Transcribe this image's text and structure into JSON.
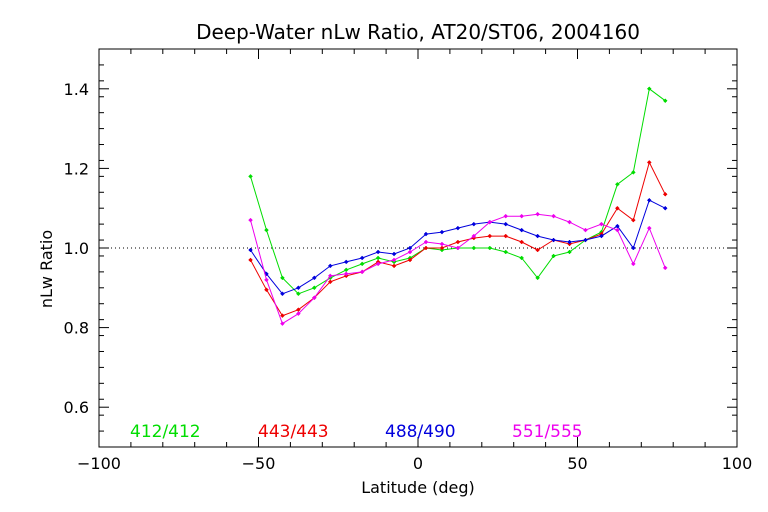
{
  "chart_data": {
    "type": "line",
    "title": "Deep-Water nLw Ratio, AT20/ST06, 2004160",
    "xlabel": "Latitude (deg)",
    "ylabel": "nLw Ratio",
    "xlim": [
      -100,
      100
    ],
    "ylim": [
      0.5,
      1.5
    ],
    "xticks": [
      -100,
      -50,
      0,
      50,
      100
    ],
    "xtick_labels": [
      "−100",
      "−50",
      "0",
      "50",
      "100"
    ],
    "yticks": [
      0.6,
      0.8,
      1.0,
      1.2,
      1.4
    ],
    "ytick_labels": [
      "0.6",
      "0.8",
      "1.0",
      "1.2",
      "1.4"
    ],
    "reference_line": {
      "y": 1.0,
      "style": "dotted"
    },
    "grid": false,
    "legend_position": "bottom, inside plot, horizontal",
    "x": [
      -52.5,
      -47.5,
      -42.5,
      -37.5,
      -32.5,
      -27.5,
      -22.5,
      -17.5,
      -12.5,
      -7.5,
      -2.5,
      2.5,
      7.5,
      12.5,
      17.5,
      22.5,
      27.5,
      32.5,
      37.5,
      42.5,
      47.5,
      52.5,
      57.5,
      62.5,
      67.5,
      72.5,
      77.5
    ],
    "series": [
      {
        "name": "412/412",
        "color": "#00dd00",
        "values": [
          1.18,
          1.045,
          0.925,
          0.885,
          0.9,
          0.925,
          0.945,
          0.96,
          0.975,
          0.965,
          0.975,
          1.0,
          0.995,
          1.0,
          1.0,
          1.0,
          0.99,
          0.975,
          0.925,
          0.98,
          0.99,
          1.02,
          1.04,
          1.16,
          1.19,
          1.4,
          1.37
        ]
      },
      {
        "name": "443/443",
        "color": "#ee0000",
        "values": [
          0.97,
          0.895,
          0.83,
          0.845,
          0.875,
          0.915,
          0.93,
          0.94,
          0.965,
          0.955,
          0.97,
          1.0,
          1.0,
          1.015,
          1.025,
          1.03,
          1.03,
          1.015,
          0.995,
          1.02,
          1.01,
          1.02,
          1.035,
          1.1,
          1.07,
          1.215,
          1.135
        ]
      },
      {
        "name": "488/490",
        "color": "#0000dd",
        "values": [
          0.995,
          0.935,
          0.885,
          0.9,
          0.925,
          0.955,
          0.965,
          0.975,
          0.99,
          0.985,
          1.0,
          1.035,
          1.04,
          1.05,
          1.06,
          1.065,
          1.06,
          1.045,
          1.03,
          1.02,
          1.015,
          1.02,
          1.03,
          1.055,
          1.0,
          1.12,
          1.1
        ]
      },
      {
        "name": "551/555",
        "color": "#ee00ee",
        "values": [
          1.07,
          0.92,
          0.81,
          0.835,
          0.875,
          0.93,
          0.935,
          0.94,
          0.96,
          0.97,
          0.99,
          1.015,
          1.01,
          1.0,
          1.03,
          1.065,
          1.08,
          1.08,
          1.085,
          1.08,
          1.065,
          1.045,
          1.06,
          1.045,
          0.96,
          1.05,
          0.95
        ]
      }
    ]
  }
}
